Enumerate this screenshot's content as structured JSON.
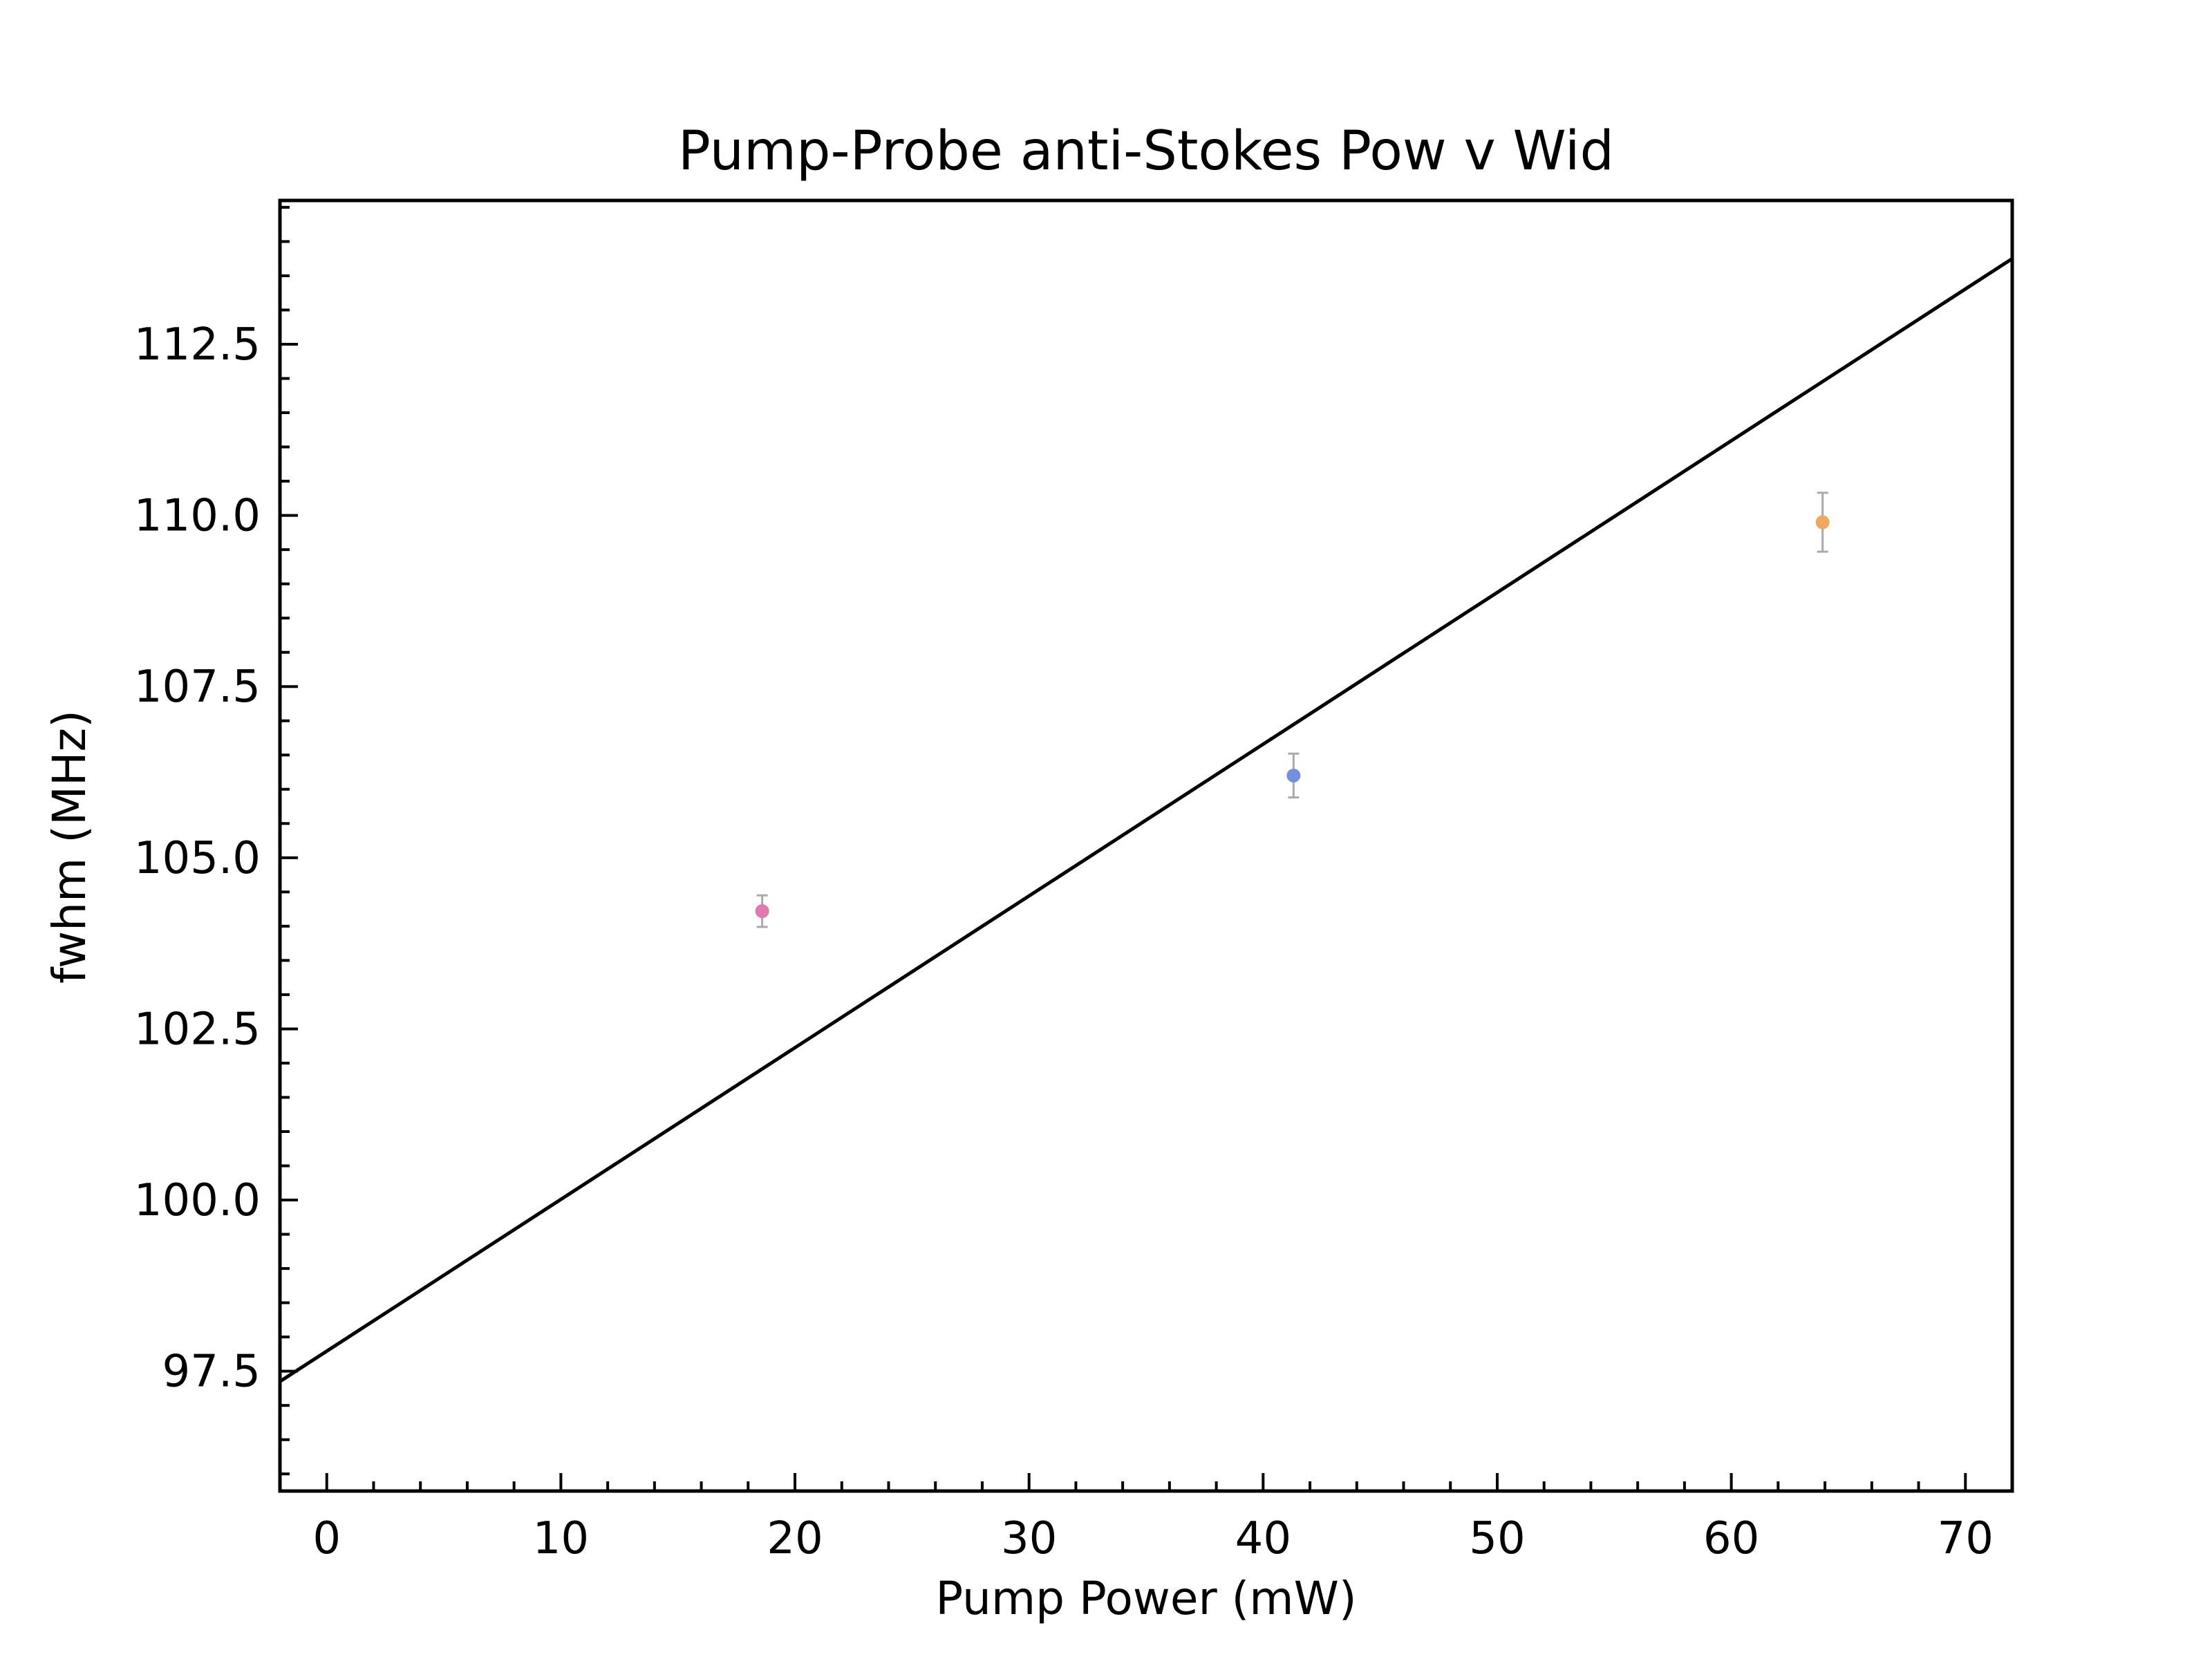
{
  "chart_data": {
    "type": "scatter",
    "title": "Pump-Probe anti-Stokes Pow v Wid",
    "xlabel": "Pump Power (mW)",
    "ylabel": "fwhm (MHz)",
    "xlim": [
      -2,
      72
    ],
    "ylim": [
      95.75,
      114.6
    ],
    "x_ticks": [
      0,
      10,
      20,
      30,
      40,
      50,
      60,
      70
    ],
    "x_tick_labels": [
      "0",
      "10",
      "20",
      "30",
      "40",
      "50",
      "60",
      "70"
    ],
    "y_ticks": [
      97.5,
      100.0,
      102.5,
      105.0,
      107.5,
      110.0,
      112.5
    ],
    "y_tick_labels": [
      "97.5",
      "100.0",
      "102.5",
      "105.0",
      "107.5",
      "110.0",
      "112.5"
    ],
    "x_minor_step": 2,
    "y_minor_step": 0.5,
    "grid": false,
    "points": [
      {
        "x": 18.6,
        "y": 104.22,
        "yerr": 0.23,
        "color": "#e377b0"
      },
      {
        "x": 41.3,
        "y": 106.2,
        "yerr": 0.32,
        "color": "#7390e0"
      },
      {
        "x": 63.9,
        "y": 109.9,
        "yerr": 0.43,
        "color": "#f0a860"
      }
    ],
    "fit_line": {
      "x": [
        -2,
        72
      ],
      "y": [
        97.35,
        113.75
      ],
      "color": "#000000"
    },
    "errorbar_color": "#aaaaaa"
  }
}
